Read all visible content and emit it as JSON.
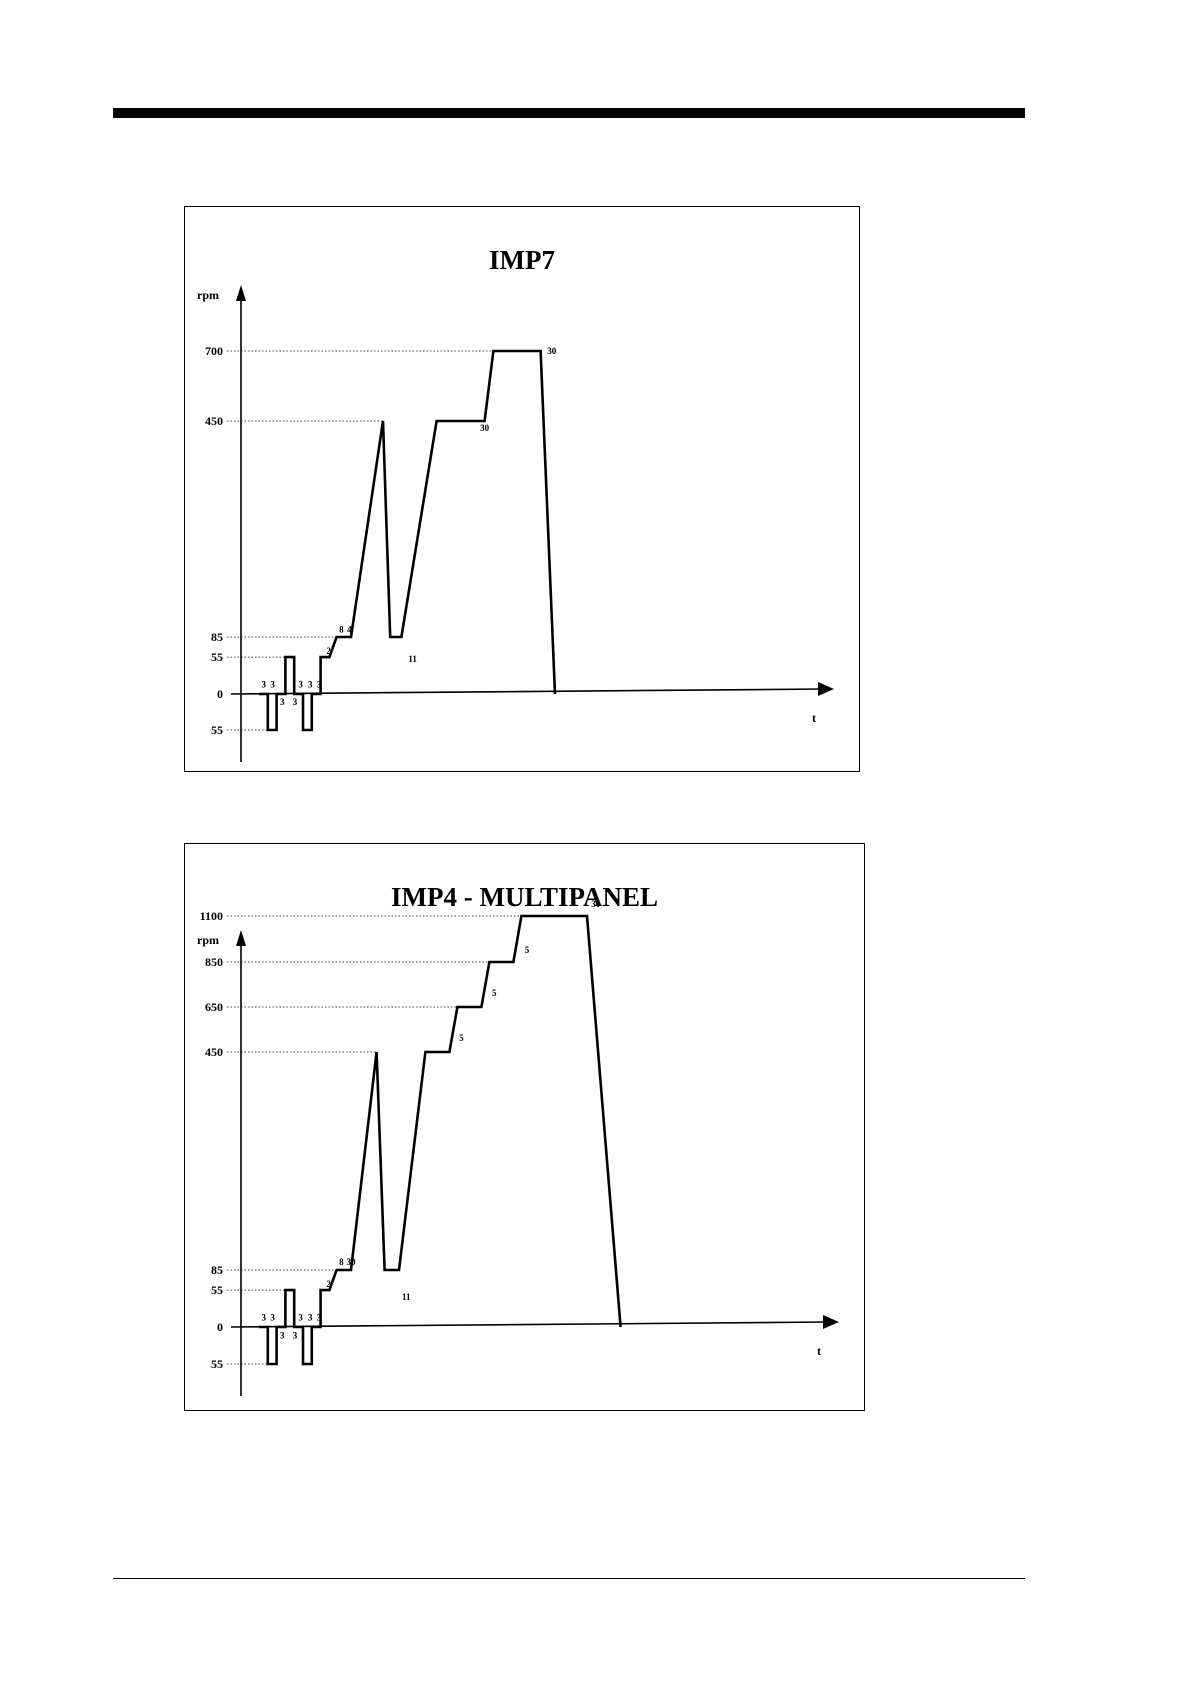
{
  "charts": [
    {
      "title": "IMP7",
      "ylabel": "rpm",
      "xlabel": "t",
      "y_ticks": [
        {
          "label": "700",
          "value": 700
        },
        {
          "label": "450",
          "value": 450
        },
        {
          "label": "85",
          "value": 85
        },
        {
          "label": "55",
          "value": 55
        },
        {
          "label": "0",
          "value": 0
        },
        {
          "label": "55",
          "value": -55
        }
      ],
      "annotations": [
        {
          "text": "3",
          "t": 6,
          "rpm": 10
        },
        {
          "text": "3",
          "t": 17,
          "rpm": 10
        },
        {
          "text": "3",
          "t": 29,
          "rpm": -17
        },
        {
          "text": "3",
          "t": 45,
          "rpm": -17
        },
        {
          "text": "3",
          "t": 52,
          "rpm": 10
        },
        {
          "text": "3",
          "t": 64,
          "rpm": 10
        },
        {
          "text": "3",
          "t": 75,
          "rpm": 10
        },
        {
          "text": "2",
          "t": 87,
          "rpm": 60
        },
        {
          "text": "8",
          "t": 103,
          "rpm": 93
        },
        {
          "text": "4",
          "t": 113,
          "rpm": 93
        },
        {
          "text": "11",
          "t": 192,
          "rpm": 48
        },
        {
          "text": "30",
          "t": 282,
          "rpm": 433
        },
        {
          "text": "30",
          "t": 366,
          "rpm": 690
        }
      ]
    },
    {
      "title": "IMP4 - MULTIPANEL",
      "ylabel": "rpm",
      "xlabel": "t",
      "y_ticks": [
        {
          "label": "1100",
          "value": 1100
        },
        {
          "label": "850",
          "value": 850
        },
        {
          "label": "650",
          "value": 650
        },
        {
          "label": "450",
          "value": 450
        },
        {
          "label": "85",
          "value": 85
        },
        {
          "label": "55",
          "value": 55
        },
        {
          "label": "0",
          "value": 0
        },
        {
          "label": "55",
          "value": -55
        }
      ],
      "annotations": [
        {
          "text": "3",
          "t": 6,
          "rpm": 10
        },
        {
          "text": "3",
          "t": 17,
          "rpm": 10
        },
        {
          "text": "3",
          "t": 29,
          "rpm": -17
        },
        {
          "text": "3",
          "t": 45,
          "rpm": -17
        },
        {
          "text": "3",
          "t": 52,
          "rpm": 10
        },
        {
          "text": "3",
          "t": 64,
          "rpm": 10
        },
        {
          "text": "3",
          "t": 75,
          "rpm": 10
        },
        {
          "text": "2",
          "t": 87,
          "rpm": 60
        },
        {
          "text": "8",
          "t": 103,
          "rpm": 93
        },
        {
          "text": "30",
          "t": 115,
          "rpm": 93
        },
        {
          "text": "11",
          "t": 184,
          "rpm": 40
        },
        {
          "text": "5",
          "t": 253,
          "rpm": 500
        },
        {
          "text": "5",
          "t": 294,
          "rpm": 700
        },
        {
          "text": "5",
          "t": 335,
          "rpm": 900
        },
        {
          "text": "30",
          "t": 421,
          "rpm": 1150
        }
      ]
    }
  ],
  "chart_data": [
    {
      "type": "line",
      "title": "IMP7",
      "ylabel": "rpm",
      "xlabel": "t",
      "y_tick_values": [
        700,
        450,
        85,
        55,
        0,
        -55
      ],
      "ylim": [
        -110,
        880
      ],
      "xlim": [
        0,
        680
      ],
      "grid": "dotted guide lines at rpm levels",
      "series": [
        {
          "x": [
            0,
            11,
            11,
            22,
            22,
            33,
            33,
            44,
            44,
            55,
            55,
            66,
            66,
            77,
            77,
            88,
            97,
            106,
            115,
            155,
            164,
            178,
            222,
            282,
            293,
            352,
            370
          ],
          "y": [
            0,
            0,
            -55,
            -55,
            0,
            0,
            55,
            55,
            0,
            0,
            -55,
            -55,
            0,
            0,
            55,
            55,
            85,
            85,
            85,
            450,
            85,
            85,
            450,
            450,
            700,
            700,
            0
          ]
        }
      ]
    },
    {
      "type": "line",
      "title": "IMP4 - MULTIPANEL",
      "ylabel": "rpm",
      "xlabel": "t",
      "y_tick_values": [
        1100,
        850,
        650,
        450,
        85,
        55,
        0,
        -55
      ],
      "ylim": [
        -110,
        1400
      ],
      "xlim": [
        0,
        690
      ],
      "grid": "dotted guide lines at rpm levels",
      "series": [
        {
          "x": [
            0,
            11,
            11,
            22,
            22,
            33,
            33,
            44,
            44,
            55,
            55,
            66,
            66,
            77,
            77,
            88,
            97,
            106,
            115,
            147,
            157,
            175,
            208,
            238,
            248,
            278,
            288,
            318,
            328,
            410,
            452
          ],
          "y": [
            0,
            0,
            -55,
            -55,
            0,
            0,
            55,
            55,
            0,
            0,
            -55,
            -55,
            0,
            0,
            55,
            55,
            85,
            85,
            85,
            450,
            85,
            85,
            450,
            450,
            650,
            650,
            850,
            850,
            1100,
            1100,
            0
          ]
        }
      ]
    }
  ]
}
